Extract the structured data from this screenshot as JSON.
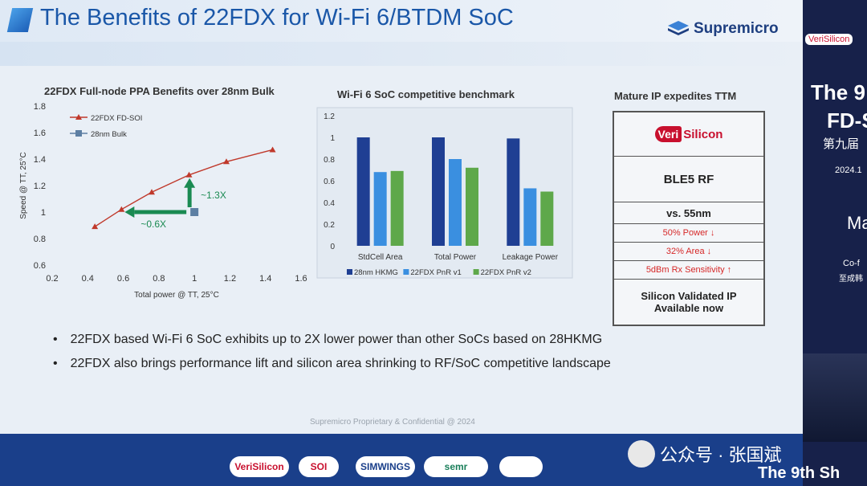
{
  "slide": {
    "title": "The Benefits of 22FDX for Wi-Fi 6/BTDM SoC",
    "logo_text": "Supremicro",
    "footer": "Supremicro Proprietary & Confidential @ 2024"
  },
  "ttm": {
    "title": "Mature IP expedites TTM",
    "vs_logo_badge": "Veri",
    "vs_logo_rest": "Silicon",
    "rows": [
      {
        "text": "BLE5 RF",
        "color": "#222222"
      },
      {
        "text": "vs. 55nm",
        "color": "#222222"
      },
      {
        "text": "50% Power ↓",
        "color": "#d62828"
      },
      {
        "text": "32% Area ↓",
        "color": "#d62828"
      },
      {
        "text": "5dBm Rx Sensitivity ↑",
        "color": "#d62828"
      },
      {
        "text": "Silicon Validated IP Available now",
        "color": "#222222"
      }
    ]
  },
  "bullets": [
    "22FDX based Wi-Fi 6 SoC exhibits up to 2X lower power than other SoCs based on 28HKMG",
    "22FDX also brings performance lift and silicon area shrinking to RF/SoC competitive landscape"
  ],
  "bullet_symbol": "•",
  "chart_data": [
    {
      "type": "scatter",
      "title": "22FDX Full-node PPA Benefits over 28nm Bulk",
      "xlabel": "Total power @ TT, 25°C",
      "ylabel": "Speed @ TT, 25°C",
      "xlim": [
        0.2,
        1.6
      ],
      "ylim": [
        0.6,
        1.8
      ],
      "x_ticks": [
        "0.2",
        "0.4",
        "0.6",
        "0.8",
        "1",
        "1.2",
        "1.4",
        "1.6"
      ],
      "y_ticks": [
        "0.6",
        "0.8",
        "1",
        "1.2",
        "1.4",
        "1.6",
        "1.8"
      ],
      "legend_position": "top-left",
      "series": [
        {
          "name": "22FDX FD-SOI",
          "color": "#c0392b",
          "marker": "triangle",
          "x": [
            0.44,
            0.59,
            0.76,
            0.97,
            1.18,
            1.44
          ],
          "y": [
            0.89,
            1.02,
            1.15,
            1.28,
            1.38,
            1.47
          ]
        },
        {
          "name": "28nm Bulk",
          "color": "#5d7fa3",
          "marker": "square",
          "x": [
            1.0
          ],
          "y": [
            1.0
          ]
        }
      ],
      "annotations": [
        {
          "text": "~1.3X",
          "color": "#1a8a52"
        },
        {
          "text": "~0.6X",
          "color": "#1a8a52"
        }
      ]
    },
    {
      "type": "bar",
      "title": "Wi-Fi 6 SoC competitive benchmark",
      "categories": [
        "StdCell Area",
        "Total Power",
        "Leakage Power"
      ],
      "ylim": [
        0,
        1.2
      ],
      "y_ticks": [
        "0",
        "0.2",
        "0.4",
        "0.6",
        "0.8",
        "1",
        "1.2"
      ],
      "legend_position": "bottom",
      "series": [
        {
          "name": "28nm HKMG",
          "color": "#1f3f93",
          "values": [
            1.0,
            1.0,
            0.99
          ]
        },
        {
          "name": "22FDX PnR v1",
          "color": "#3a8fe0",
          "values": [
            0.68,
            0.8,
            0.53
          ]
        },
        {
          "name": "22FDX PnR v2",
          "color": "#5ea84a",
          "values": [
            0.69,
            0.72,
            0.5
          ]
        }
      ]
    }
  ],
  "event": {
    "right_lines": [
      "The 9",
      "FD-S",
      "第九届",
      "2024.1",
      "Ma",
      "Co-f",
      "至成韩"
    ],
    "bottom_right": "The 9th Sh",
    "watermark": "公众号 · 张国斌",
    "sponsors": [
      {
        "label": "VeriSilicon",
        "bg": "#ffffff",
        "color": "#c8102e"
      },
      {
        "label": "SOI",
        "bg": "#ffffff",
        "color": "#c8102e"
      },
      {
        "label": "SIMWINGS",
        "bg": "#ffffff",
        "color": "#1a3f8a"
      },
      {
        "label": "semr",
        "bg": "#ffffff",
        "color": "#1a7f5a"
      },
      {
        "label": "",
        "bg": "#ffffff",
        "color": "#1a3f8a"
      }
    ]
  }
}
